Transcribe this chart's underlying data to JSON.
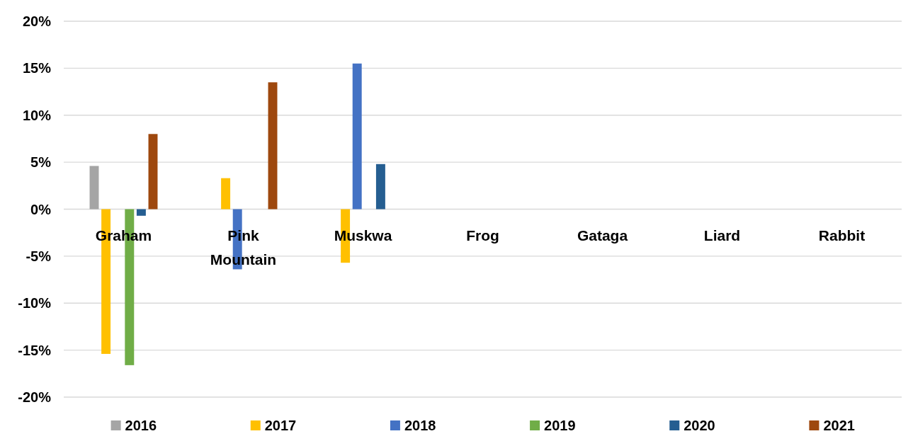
{
  "chart_data": {
    "type": "bar",
    "categories": [
      "Graham",
      "Pink Mountain",
      "Muskwa",
      "Frog",
      "Gataga",
      "Liard",
      "Rabbit"
    ],
    "series": [
      {
        "name": "2016",
        "color": "#a5a5a5",
        "values": [
          4.6,
          null,
          null,
          null,
          null,
          null,
          null
        ]
      },
      {
        "name": "2017",
        "color": "#ffc000",
        "values": [
          -15.4,
          3.3,
          -5.7,
          null,
          null,
          null,
          null
        ]
      },
      {
        "name": "2018",
        "color": "#4472c4",
        "values": [
          null,
          -6.4,
          15.5,
          null,
          null,
          null,
          null
        ]
      },
      {
        "name": "2019",
        "color": "#70ad47",
        "values": [
          -16.6,
          null,
          null,
          null,
          null,
          null,
          null
        ]
      },
      {
        "name": "2020",
        "color": "#255e91",
        "values": [
          -0.7,
          null,
          4.8,
          null,
          null,
          null,
          null
        ]
      },
      {
        "name": "2021",
        "color": "#9e480e",
        "values": [
          8.0,
          13.5,
          null,
          null,
          null,
          null,
          null
        ]
      }
    ],
    "ylim": [
      -20,
      20
    ],
    "yticks": [
      {
        "value": -20,
        "label": "-20%"
      },
      {
        "value": -15,
        "label": "-15%"
      },
      {
        "value": -10,
        "label": "-10%"
      },
      {
        "value": -5,
        "label": "-5%"
      },
      {
        "value": 0,
        "label": "0%"
      },
      {
        "value": 5,
        "label": "5%"
      },
      {
        "value": 10,
        "label": "10%"
      },
      {
        "value": 15,
        "label": "15%"
      },
      {
        "value": 20,
        "label": "20%"
      }
    ],
    "grid": "y",
    "legend": "bottom"
  }
}
